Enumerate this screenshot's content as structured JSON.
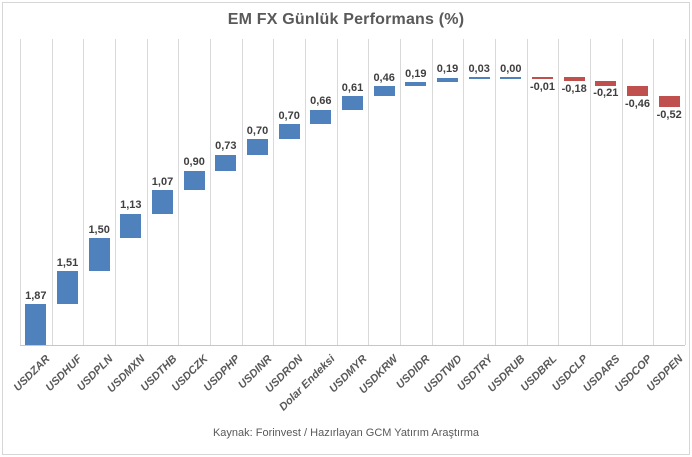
{
  "caption": "Kaynak: Forinvest / Hazırlayan GCM Yatırım Araştırma",
  "chart_data": {
    "type": "bar",
    "subtype": "waterfall",
    "title": "EM FX Günlük Performans (%)",
    "categories": [
      "USDZAR",
      "USDHUF",
      "USDPLN",
      "USDMXN",
      "USDTHB",
      "USDCZK",
      "USDPHP",
      "USDINR",
      "USDRON",
      "Dolar Endeksi",
      "USDMYR",
      "USDKRW",
      "USDIDR",
      "USDTWD",
      "USDTRY",
      "USDRUB",
      "USDBRL",
      "USDCLP",
      "USDARS",
      "USDCOP",
      "USDPEN"
    ],
    "values": [
      1.87,
      1.51,
      1.5,
      1.13,
      1.07,
      0.9,
      0.73,
      0.7,
      0.7,
      0.66,
      0.61,
      0.46,
      0.19,
      0.19,
      0.03,
      0.0,
      -0.01,
      -0.18,
      -0.21,
      -0.46,
      -0.52
    ],
    "value_labels": [
      "1,87",
      "1,51",
      "1,50",
      "1,13",
      "1,07",
      "0,90",
      "0,73",
      "0,70",
      "0,70",
      "0,66",
      "0,61",
      "0,46",
      "0,19",
      "0,19",
      "0,03",
      "0,00",
      "-0,01",
      "-0,18",
      "-0,21",
      "-0,46",
      "-0,52"
    ],
    "positive_color": "#4F81BD",
    "negative_color": "#C0504D",
    "gridline_color": "#D9D9D9",
    "ylim": [
      0,
      14
    ],
    "grid": "vertical-only",
    "legend": "none",
    "xlabel": "",
    "ylabel": ""
  }
}
